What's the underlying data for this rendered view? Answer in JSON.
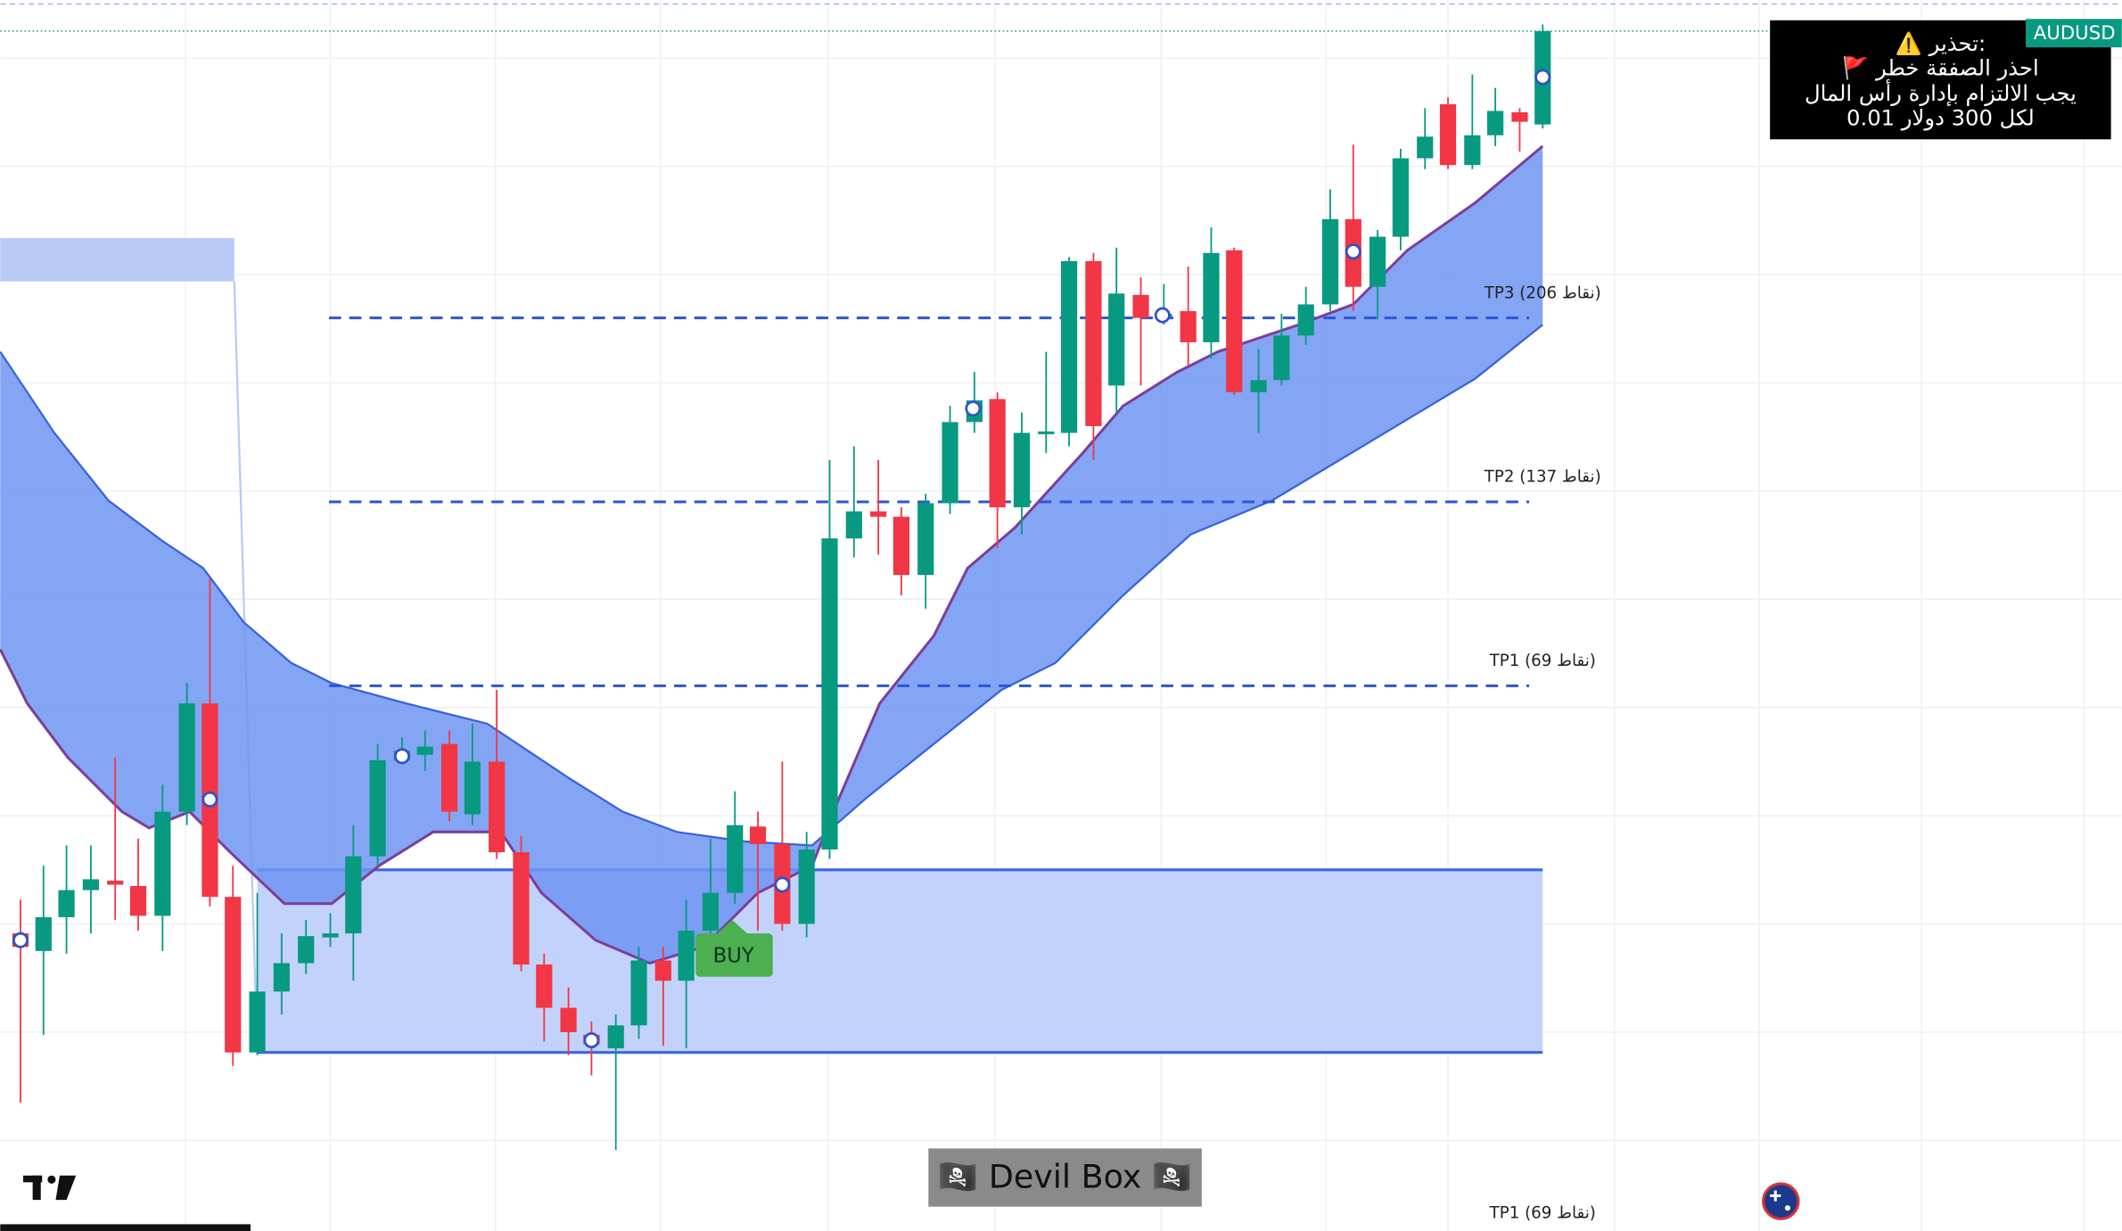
{
  "symbol": "AUDUSD",
  "warning": [
    "⚠️ تحذير:",
    "🚩 احذر الصفقة خطر",
    "يجب الالتزام بإدارة رأس المال",
    "لكل 300 دولار 0.01"
  ],
  "levels": [
    "TP3 (206 نقاط)",
    "TP2 (137 نقاط)",
    "TP1 (69 نقاط)"
  ],
  "footer_level": "TP1 (69 نقاط)",
  "signal": "BUY",
  "indicator": "🏴‍☠️ Devil Box 🏴‍☠️"
}
